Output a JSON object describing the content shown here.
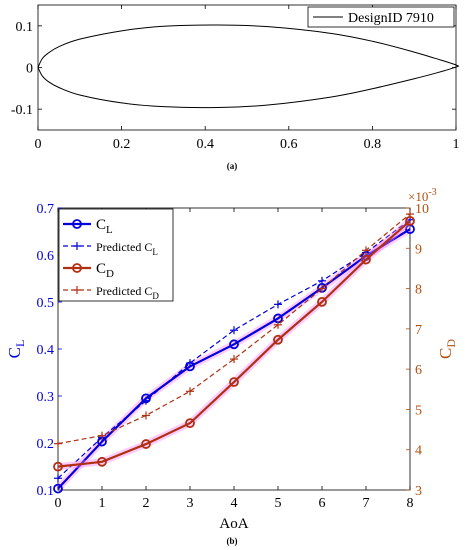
{
  "chart_data": [
    {
      "type": "line",
      "caption": "(a)",
      "xlim": [
        0,
        1
      ],
      "ylim": [
        -0.15,
        0.15
      ],
      "x_ticks": [
        "0",
        "0.2",
        "0.4",
        "0.6",
        "0.8",
        "1"
      ],
      "y_ticks": [
        "-0.1",
        "0",
        "0.1"
      ],
      "legend": {
        "position": "top-right",
        "entries": [
          "DesignID 7910"
        ]
      },
      "series": [
        {
          "name": "DesignID 7910",
          "color": "#000000",
          "x": [
            0,
            0.01,
            0.025,
            0.05,
            0.1,
            0.2,
            0.3,
            0.43,
            0.55,
            0.7,
            0.8,
            0.9,
            0.95,
            1.0
          ],
          "upper": [
            0,
            0.021,
            0.035,
            0.05,
            0.068,
            0.088,
            0.099,
            0.102,
            0.098,
            0.082,
            0.063,
            0.037,
            0.022,
            0.006
          ],
          "lower": [
            0,
            -0.02,
            -0.034,
            -0.048,
            -0.066,
            -0.085,
            -0.094,
            -0.096,
            -0.09,
            -0.071,
            -0.051,
            -0.027,
            -0.014,
            0.001
          ]
        }
      ],
      "grid": false
    },
    {
      "type": "line",
      "caption": "(b)",
      "xlabel": "AoA",
      "ylabel_left": "C_L",
      "ylabel_right": "C_D",
      "right_exponent": "×10",
      "right_exponent_power": "-3",
      "xlim": [
        0,
        8
      ],
      "ylim_left": [
        0.1,
        0.7
      ],
      "ylim_right": [
        3,
        10
      ],
      "x": [
        0,
        1,
        2,
        3,
        4,
        5,
        6,
        7,
        8
      ],
      "x_ticks": [
        "0",
        "1",
        "2",
        "3",
        "4",
        "5",
        "6",
        "7",
        "8"
      ],
      "y_ticks_left": [
        "0.1",
        "0.2",
        "0.3",
        "0.4",
        "0.5",
        "0.6",
        "0.7"
      ],
      "y_ticks_right": [
        "3",
        "4",
        "5",
        "6",
        "7",
        "8",
        "9",
        "10"
      ],
      "legend": {
        "position": "top-left",
        "entries": [
          {
            "main": "C",
            "sub": "L"
          },
          {
            "main": "Predicted C",
            "sub": "L"
          },
          {
            "main": "C",
            "sub": "D"
          },
          {
            "main": "Predicted C",
            "sub": "D"
          }
        ]
      },
      "series": [
        {
          "name": "C_L",
          "axis": "left",
          "color": "#0000dd",
          "style": "solid",
          "marker": "circle",
          "values": [
            0.103,
            0.203,
            0.295,
            0.363,
            0.41,
            0.465,
            0.53,
            0.598,
            0.655
          ]
        },
        {
          "name": "Predicted C_L",
          "axis": "left",
          "color": "#0000dd",
          "style": "dashed",
          "marker": "plus",
          "values": [
            0.125,
            0.212,
            0.29,
            0.37,
            0.44,
            0.495,
            0.545,
            0.605,
            0.675
          ]
        },
        {
          "name": "C_D",
          "axis": "right",
          "color": "#b03010",
          "style": "solid",
          "marker": "circle",
          "values": [
            3.58,
            3.7,
            4.14,
            4.66,
            5.68,
            6.73,
            7.67,
            8.72,
            9.68
          ]
        },
        {
          "name": "Predicted C_D",
          "axis": "right",
          "color": "#b03010",
          "style": "dashed",
          "marker": "plus",
          "values": [
            4.15,
            4.35,
            4.85,
            5.45,
            6.25,
            7.1,
            8.0,
            8.95,
            9.85
          ]
        }
      ],
      "grid": false
    }
  ]
}
